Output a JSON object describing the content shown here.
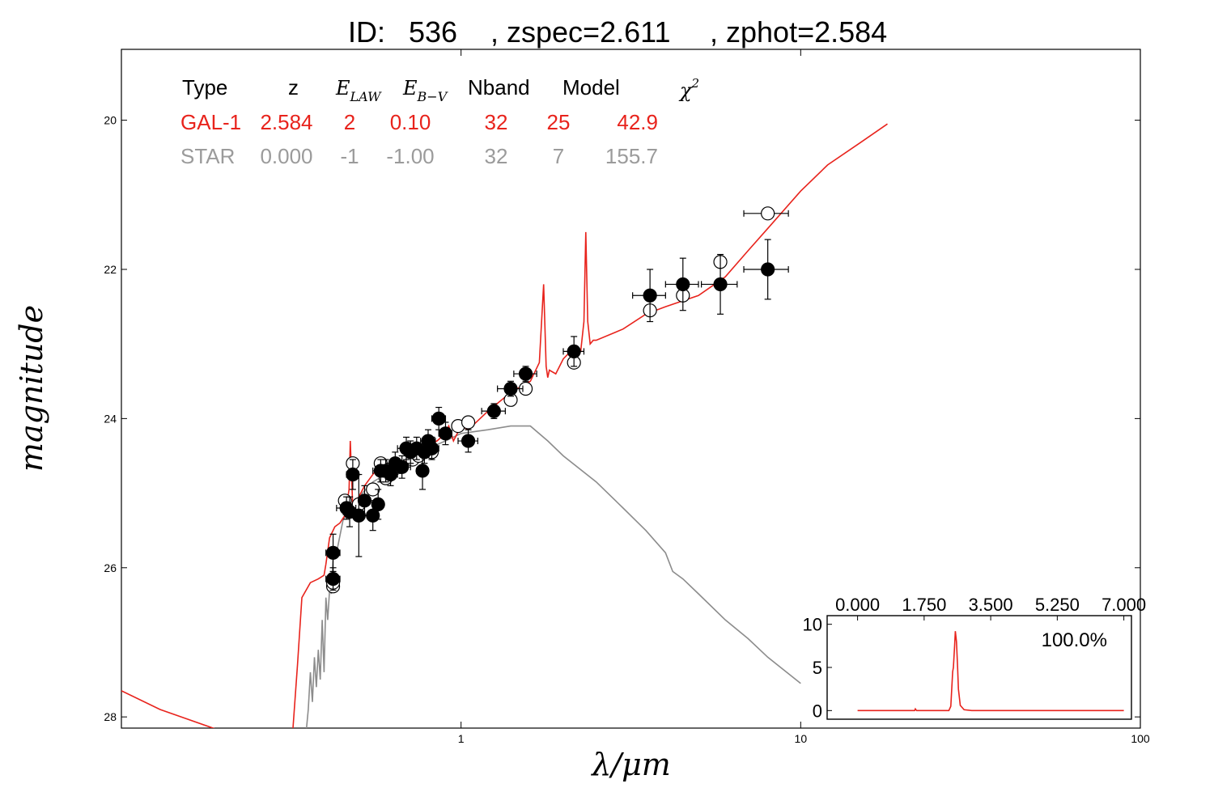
{
  "chart_data": {
    "type": "scatter",
    "title_parts": [
      "ID:",
      "536",
      ", zspec=2.611",
      ", zphot=2.584"
    ],
    "xlabel": "λ/μm",
    "ylabel": "magnitude",
    "xscale": "log",
    "xlim": [
      0.1,
      100
    ],
    "ylim": [
      28.15,
      19.05
    ],
    "xticks": [
      {
        "value": 1,
        "label": "1"
      },
      {
        "value": 10,
        "label": "10"
      },
      {
        "value": 100,
        "label": "100"
      }
    ],
    "yticks": [
      {
        "value": 20,
        "label": "20"
      },
      {
        "value": 22,
        "label": "22"
      },
      {
        "value": 24,
        "label": "24"
      },
      {
        "value": 26,
        "label": "26"
      },
      {
        "value": 28,
        "label": "28"
      }
    ],
    "fit_table": {
      "headers": {
        "type": "Type",
        "z": "z",
        "elaw": "E",
        "elaw_sub": "LAW",
        "ebv": "E",
        "ebv_sub": "B−V",
        "nband": "Nband",
        "model": "Model",
        "chi2": "χ",
        "chi2_sup": "2"
      },
      "rows": [
        {
          "type": "GAL-1",
          "z": "2.584",
          "elaw": "2",
          "ebv": "0.10",
          "nband": "32",
          "model": "25",
          "chi2": "42.9",
          "color": "#e8231c"
        },
        {
          "type": "STAR",
          "z": "0.000",
          "elaw": "-1",
          "ebv": "-1.00",
          "nband": "32",
          "model": "7",
          "chi2": "155.7",
          "color": "#9b9b9b"
        }
      ]
    },
    "series": [
      {
        "name": "GAL-1",
        "kind": "line",
        "color": "#e8231c",
        "x": [
          0.1,
          0.13,
          0.2,
          0.3,
          0.32,
          0.33,
          0.34,
          0.36,
          0.38,
          0.395,
          0.4,
          0.41,
          0.425,
          0.44,
          0.455,
          0.468,
          0.472,
          0.48,
          0.5,
          0.52,
          0.56,
          0.6,
          0.65,
          0.7,
          0.75,
          0.8,
          0.85,
          0.9,
          0.92,
          0.95,
          1.0,
          1.05,
          1.2,
          1.4,
          1.6,
          1.7,
          1.75,
          1.78,
          1.8,
          1.82,
          1.9,
          2.0,
          2.1,
          2.25,
          2.3,
          2.33,
          2.36,
          2.4,
          2.45,
          2.5,
          3.0,
          3.5,
          4.0,
          5.0,
          6.0,
          7.0,
          8.0,
          10.0,
          12.0,
          15.0,
          18.0
        ],
        "y": [
          27.65,
          27.9,
          28.2,
          28.5,
          28.15,
          27.3,
          26.4,
          26.2,
          26.15,
          26.1,
          25.95,
          25.6,
          25.45,
          25.4,
          25.3,
          24.95,
          24.3,
          25.2,
          25.05,
          24.9,
          24.7,
          24.7,
          24.65,
          24.55,
          24.45,
          24.35,
          24.3,
          24.2,
          24.1,
          24.3,
          24.1,
          24.15,
          23.9,
          23.65,
          23.5,
          23.25,
          22.2,
          23.3,
          23.45,
          23.35,
          23.4,
          23.2,
          23.1,
          23.1,
          22.7,
          21.5,
          22.7,
          23.0,
          22.95,
          22.95,
          22.8,
          22.6,
          22.5,
          22.35,
          22.1,
          21.75,
          21.45,
          20.95,
          20.6,
          20.3,
          20.05
        ]
      },
      {
        "name": "STAR",
        "kind": "line",
        "color": "#8c8c8c",
        "x": [
          0.35,
          0.355,
          0.36,
          0.365,
          0.37,
          0.375,
          0.38,
          0.385,
          0.39,
          0.395,
          0.4,
          0.405,
          0.41,
          0.415,
          0.42,
          0.43,
          0.45,
          0.47,
          0.5,
          0.55,
          0.6,
          0.7,
          0.8,
          0.9,
          1.0,
          1.2,
          1.4,
          1.6,
          1.8,
          2.0,
          2.5,
          3.0,
          3.5,
          4.0,
          4.2,
          4.5,
          5.0,
          6.0,
          7.0,
          8.0,
          10.0
        ],
        "y": [
          28.2,
          27.9,
          27.4,
          27.8,
          27.2,
          27.6,
          27.1,
          27.5,
          26.7,
          27.4,
          26.4,
          26.7,
          26.3,
          26.35,
          25.85,
          25.8,
          25.35,
          25.25,
          25.05,
          24.85,
          24.75,
          24.55,
          24.4,
          24.3,
          24.2,
          24.15,
          24.1,
          24.1,
          24.3,
          24.5,
          24.85,
          25.2,
          25.5,
          25.8,
          26.05,
          26.15,
          26.35,
          26.7,
          26.95,
          27.2,
          27.55
        ]
      },
      {
        "name": "observed",
        "kind": "points",
        "marker": "filled",
        "points": [
          {
            "x": 0.42,
            "y": 25.8,
            "xe": 0.02,
            "ye": 0.25
          },
          {
            "x": 0.42,
            "y": 26.15,
            "xe": 0.02,
            "ye": 0.15
          },
          {
            "x": 0.46,
            "y": 25.2,
            "xe": 0.03,
            "ye": 0.15
          },
          {
            "x": 0.47,
            "y": 25.25,
            "xe": 0.02,
            "ye": 0.2
          },
          {
            "x": 0.48,
            "y": 24.75,
            "xe": 0.02,
            "ye": 0.2
          },
          {
            "x": 0.5,
            "y": 25.3,
            "xe": 0.03,
            "ye": 0.55
          },
          {
            "x": 0.52,
            "y": 25.1,
            "xe": 0.02,
            "ye": 0.2
          },
          {
            "x": 0.55,
            "y": 25.3,
            "xe": 0.02,
            "ye": 0.2
          },
          {
            "x": 0.57,
            "y": 25.15,
            "xe": 0.02,
            "ye": 0.2
          },
          {
            "x": 0.58,
            "y": 24.7,
            "xe": 0.03,
            "ye": 0.15
          },
          {
            "x": 0.6,
            "y": 24.7,
            "xe": 0.04,
            "ye": 0.15
          },
          {
            "x": 0.62,
            "y": 24.75,
            "xe": 0.03,
            "ye": 0.15
          },
          {
            "x": 0.64,
            "y": 24.6,
            "xe": 0.04,
            "ye": 0.15
          },
          {
            "x": 0.67,
            "y": 24.65,
            "xe": 0.04,
            "ye": 0.15
          },
          {
            "x": 0.69,
            "y": 24.4,
            "xe": 0.04,
            "ye": 0.15
          },
          {
            "x": 0.71,
            "y": 24.45,
            "xe": 0.03,
            "ye": 0.15
          },
          {
            "x": 0.74,
            "y": 24.4,
            "xe": 0.04,
            "ye": 0.15
          },
          {
            "x": 0.77,
            "y": 24.7,
            "xe": 0.03,
            "ye": 0.25
          },
          {
            "x": 0.78,
            "y": 24.45,
            "xe": 0.04,
            "ye": 0.15
          },
          {
            "x": 0.8,
            "y": 24.3,
            "xe": 0.04,
            "ye": 0.15
          },
          {
            "x": 0.82,
            "y": 24.4,
            "xe": 0.04,
            "ye": 0.15
          },
          {
            "x": 0.86,
            "y": 24.0,
            "xe": 0.04,
            "ye": 0.15
          },
          {
            "x": 0.9,
            "y": 24.2,
            "xe": 0.04,
            "ye": 0.15
          },
          {
            "x": 1.05,
            "y": 24.3,
            "xe": 0.07,
            "ye": 0.15
          },
          {
            "x": 1.25,
            "y": 23.9,
            "xe": 0.1,
            "ye": 0.1
          },
          {
            "x": 1.4,
            "y": 23.6,
            "xe": 0.12,
            "ye": 0.1
          },
          {
            "x": 1.55,
            "y": 23.4,
            "xe": 0.12,
            "ye": 0.1
          },
          {
            "x": 2.15,
            "y": 23.1,
            "xe": 0.15,
            "ye": 0.2
          },
          {
            "x": 3.6,
            "y": 22.35,
            "xe": 0.4,
            "ye": 0.35
          },
          {
            "x": 4.5,
            "y": 22.2,
            "xe": 0.5,
            "ye": 0.35
          },
          {
            "x": 5.8,
            "y": 22.2,
            "xe": 0.7,
            "ye": 0.4
          },
          {
            "x": 8.0,
            "y": 22.0,
            "xe": 1.2,
            "ye": 0.4
          }
        ]
      },
      {
        "name": "model",
        "kind": "points",
        "marker": "open",
        "points": [
          {
            "x": 0.42,
            "y": 26.25,
            "xe": 0,
            "ye": 0
          },
          {
            "x": 0.42,
            "y": 26.2,
            "xe": 0,
            "ye": 0
          },
          {
            "x": 0.455,
            "y": 25.1,
            "xe": 0,
            "ye": 0
          },
          {
            "x": 0.48,
            "y": 24.6,
            "xe": 0,
            "ye": 0
          },
          {
            "x": 0.5,
            "y": 25.15,
            "xe": 0,
            "ye": 0
          },
          {
            "x": 0.55,
            "y": 24.95,
            "xe": 0,
            "ye": 0
          },
          {
            "x": 0.58,
            "y": 24.6,
            "xe": 0,
            "ye": 0
          },
          {
            "x": 0.6,
            "y": 24.8,
            "xe": 0,
            "ye": 0
          },
          {
            "x": 0.66,
            "y": 24.65,
            "xe": 0,
            "ye": 0
          },
          {
            "x": 0.72,
            "y": 24.55,
            "xe": 0,
            "ye": 0
          },
          {
            "x": 0.75,
            "y": 24.5,
            "xe": 0,
            "ye": 0
          },
          {
            "x": 0.82,
            "y": 24.45,
            "xe": 0,
            "ye": 0
          },
          {
            "x": 0.98,
            "y": 24.1,
            "xe": 0,
            "ye": 0
          },
          {
            "x": 1.05,
            "y": 24.05,
            "xe": 0,
            "ye": 0
          },
          {
            "x": 1.4,
            "y": 23.75,
            "xe": 0,
            "ye": 0
          },
          {
            "x": 1.55,
            "y": 23.6,
            "xe": 0,
            "ye": 0
          },
          {
            "x": 2.15,
            "y": 23.25,
            "xe": 0,
            "ye": 0
          },
          {
            "x": 3.6,
            "y": 22.55,
            "xe": 0,
            "ye": 0
          },
          {
            "x": 4.5,
            "y": 22.35,
            "xe": 0,
            "ye": 0
          },
          {
            "x": 5.8,
            "y": 21.9,
            "xe": 0,
            "ye": 0
          },
          {
            "x": 8.0,
            "y": 21.25,
            "xe": 1.2,
            "ye": 0
          }
        ]
      }
    ],
    "inset": {
      "type": "line",
      "color": "#e8231c",
      "percent_label": "100.0%",
      "xlim": [
        -0.8,
        7.2
      ],
      "ylim": [
        -1,
        11
      ],
      "xticks": [
        {
          "value": 0.0,
          "label": "0.000"
        },
        {
          "value": 1.75,
          "label": "1.750"
        },
        {
          "value": 3.5,
          "label": "3.500"
        },
        {
          "value": 5.25,
          "label": "5.250"
        },
        {
          "value": 7.0,
          "label": "7.000"
        }
      ],
      "yticks": [
        {
          "value": 0,
          "label": "0"
        },
        {
          "value": 5,
          "label": "5"
        },
        {
          "value": 10,
          "label": "10"
        }
      ],
      "x": [
        0.0,
        1.5,
        1.52,
        1.55,
        2.4,
        2.45,
        2.5,
        2.52,
        2.55,
        2.57,
        2.6,
        2.63,
        2.65,
        2.7,
        2.8,
        3.0,
        7.0
      ],
      "y": [
        0,
        0,
        0.2,
        0,
        0,
        0.5,
        4.5,
        5.0,
        7.5,
        9.2,
        8.0,
        5.0,
        2.5,
        0.6,
        0.1,
        0,
        0
      ]
    }
  }
}
